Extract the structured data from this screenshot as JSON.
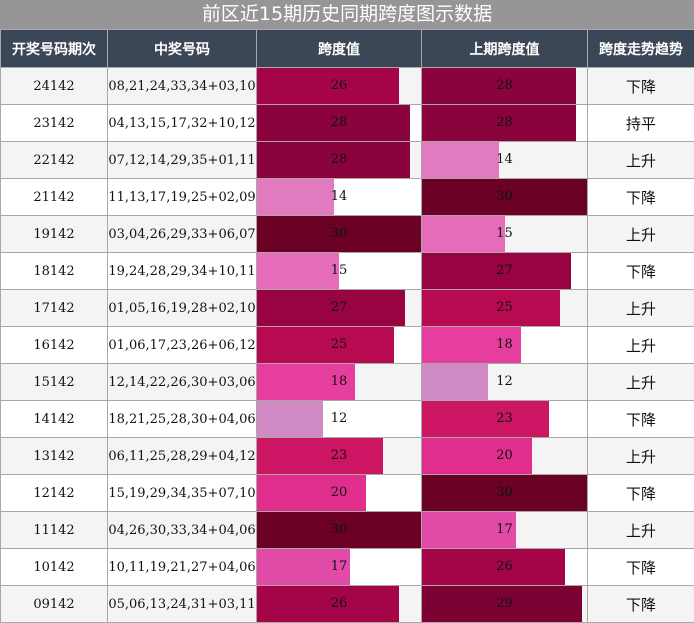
{
  "title": "前区近15期历史同期跨度图示数据",
  "chart_data": {
    "type": "table",
    "columns": [
      "开奖号码期次",
      "中奖号码",
      "跨度值",
      "上期跨度值",
      "跨度走势趋势"
    ],
    "max_span": 30,
    "rows": [
      {
        "period": "24142",
        "numbers": "08,21,24,33,34+03,10",
        "span": 26,
        "prev_span": 28,
        "trend": "下降"
      },
      {
        "period": "23142",
        "numbers": "04,13,15,17,32+10,12",
        "span": 28,
        "prev_span": 28,
        "trend": "持平"
      },
      {
        "period": "22142",
        "numbers": "07,12,14,29,35+01,11",
        "span": 28,
        "prev_span": 14,
        "trend": "上升"
      },
      {
        "period": "21142",
        "numbers": "11,13,17,19,25+02,09",
        "span": 14,
        "prev_span": 30,
        "trend": "下降"
      },
      {
        "period": "19142",
        "numbers": "03,04,26,29,33+06,07",
        "span": 30,
        "prev_span": 15,
        "trend": "上升"
      },
      {
        "period": "18142",
        "numbers": "19,24,28,29,34+10,11",
        "span": 15,
        "prev_span": 27,
        "trend": "下降"
      },
      {
        "period": "17142",
        "numbers": "01,05,16,19,28+02,10",
        "span": 27,
        "prev_span": 25,
        "trend": "上升"
      },
      {
        "period": "16142",
        "numbers": "01,06,17,23,26+06,12",
        "span": 25,
        "prev_span": 18,
        "trend": "上升"
      },
      {
        "period": "15142",
        "numbers": "12,14,22,26,30+03,06",
        "span": 18,
        "prev_span": 12,
        "trend": "上升"
      },
      {
        "period": "14142",
        "numbers": "18,21,25,28,30+04,06",
        "span": 12,
        "prev_span": 23,
        "trend": "下降"
      },
      {
        "period": "13142",
        "numbers": "06,11,25,28,29+04,12",
        "span": 23,
        "prev_span": 20,
        "trend": "上升"
      },
      {
        "period": "12142",
        "numbers": "15,19,29,34,35+07,10",
        "span": 20,
        "prev_span": 30,
        "trend": "下降"
      },
      {
        "period": "11142",
        "numbers": "04,26,30,33,34+04,06",
        "span": 30,
        "prev_span": 17,
        "trend": "上升"
      },
      {
        "period": "10142",
        "numbers": "10,11,19,21,27+04,06",
        "span": 17,
        "prev_span": 26,
        "trend": "下降"
      },
      {
        "period": "09142",
        "numbers": "05,06,13,24,31+03,11",
        "span": 26,
        "prev_span": 29,
        "trend": "下降"
      }
    ],
    "colors": {
      "12": "#d08bc4",
      "14": "#e27ac0",
      "15": "#e56cb8",
      "17": "#e24aa8",
      "18": "#e53e9e",
      "20": "#e02e8c",
      "23": "#cc1563",
      "25": "#b80a50",
      "26": "#a40548",
      "27": "#980442",
      "28": "#8b033c",
      "29": "#7c0234",
      "30": "#6b0226"
    }
  }
}
